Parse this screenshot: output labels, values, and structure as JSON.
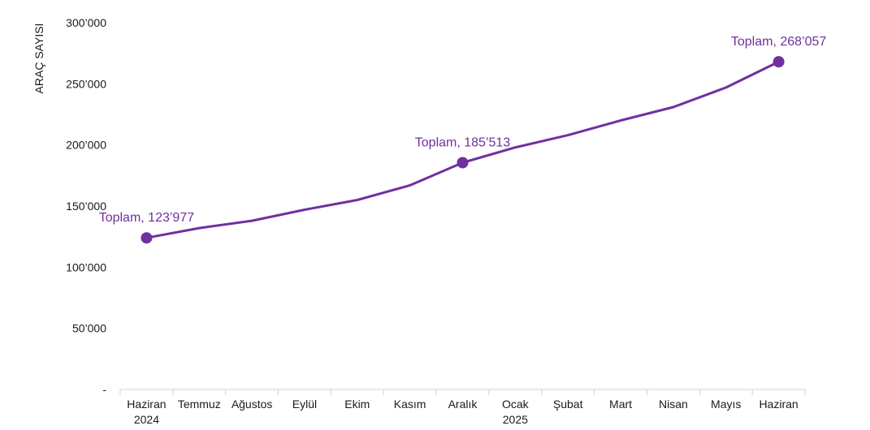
{
  "chart_data": {
    "type": "line",
    "title": "",
    "ylabel": "ARAÇ SAYISI",
    "xlabel": "",
    "categories": [
      [
        "Haziran",
        "2024"
      ],
      [
        "Temmuz"
      ],
      [
        "Ağustos"
      ],
      [
        "Eylül"
      ],
      [
        "Ekim"
      ],
      [
        "Kasım"
      ],
      [
        "Aralık"
      ],
      [
        "Ocak",
        "2025"
      ],
      [
        "Şubat"
      ],
      [
        "Mart"
      ],
      [
        "Nisan"
      ],
      [
        "Mayıs"
      ],
      [
        "Haziran"
      ]
    ],
    "series": [
      {
        "values": [
          123977,
          132000,
          138000,
          147000,
          155000,
          167000,
          185513,
          198000,
          208000,
          220000,
          231000,
          247000,
          268057
        ],
        "color": "#7030a0"
      }
    ],
    "ylim": [
      0,
      300000
    ],
    "yticks": [
      {
        "value": 0,
        "label": "-"
      },
      {
        "value": 50000,
        "label": "50’000"
      },
      {
        "value": 100000,
        "label": "100’000"
      },
      {
        "value": 150000,
        "label": "150’000"
      },
      {
        "value": 200000,
        "label": "200’000"
      },
      {
        "value": 250000,
        "label": "250’000"
      },
      {
        "value": 300000,
        "label": "300’000"
      }
    ],
    "grid": false,
    "markers": [
      {
        "index": 0,
        "label": "Toplam,  123’977"
      },
      {
        "index": 6,
        "label": "Toplam,  185’513"
      },
      {
        "index": 12,
        "label": "Toplam,  268’057"
      }
    ]
  }
}
